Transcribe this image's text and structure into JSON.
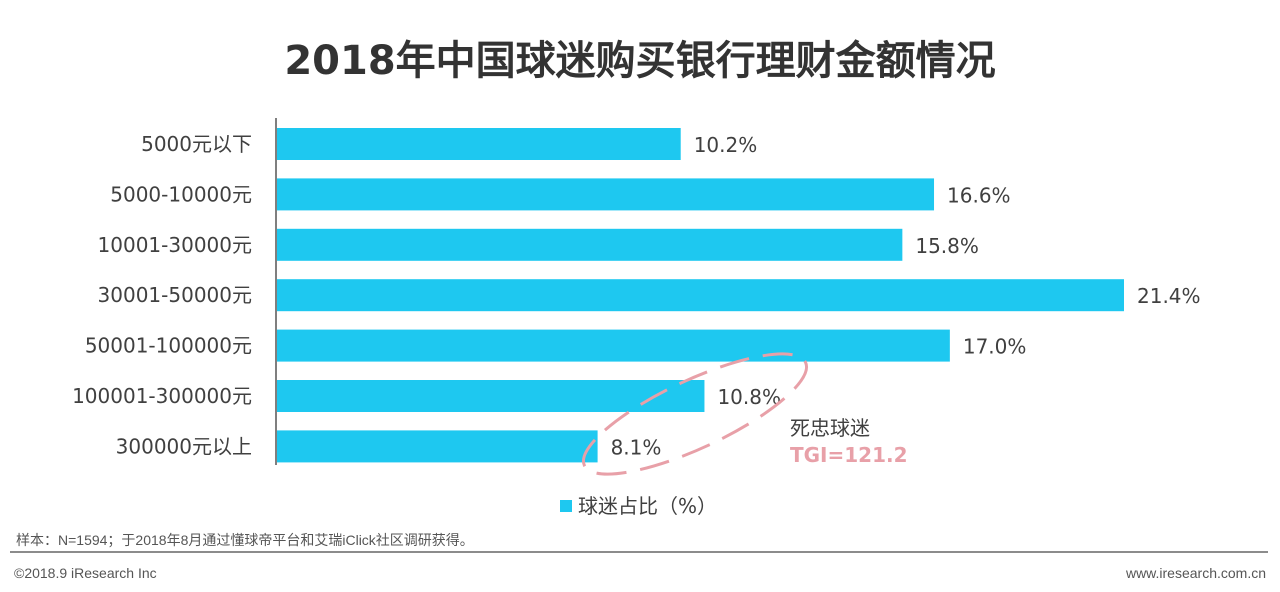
{
  "chart_data": {
    "type": "bar",
    "orientation": "horizontal",
    "title": "2018年中国球迷购买银行理财金额情况",
    "categories": [
      "5000元以下",
      "5000-10000元",
      "10001-30000元",
      "30001-50000元",
      "50001-100000元",
      "100001-300000元",
      "300000元以上"
    ],
    "series": [
      {
        "name": "球迷占比（%）",
        "values": [
          10.2,
          16.6,
          15.8,
          21.4,
          17.0,
          10.8,
          8.1
        ],
        "color": "#1EC8F0"
      }
    ],
    "value_labels": [
      "10.2%",
      "16.6%",
      "15.8%",
      "21.4%",
      "17.0%",
      "10.8%",
      "8.1%"
    ],
    "xlim": [
      0,
      22
    ],
    "grid": false,
    "legend": "bottom",
    "annotation": {
      "label": "死忠球迷",
      "value": "TGI=121.2",
      "color": "#E8A0A8",
      "highlights": [
        "100001-300000元",
        "300000元以上"
      ]
    }
  },
  "footer": {
    "note": "样本：N=1594；于2018年8月通过懂球帝平台和艾瑞iClick社区调研获得。",
    "copyright": "©2018.9 iResearch Inc",
    "website": "www.iresearch.com.cn"
  }
}
